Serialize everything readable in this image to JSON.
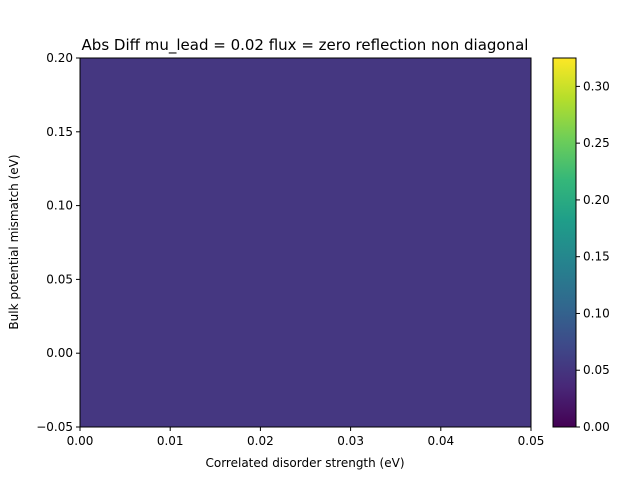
{
  "chart_data": {
    "type": "heatmap",
    "title": "Abs Diff mu_lead = 0.02 flux = zero reflection non diagonal",
    "xlabel": "Correlated disorder strength (eV)",
    "ylabel": "Bulk potential mismatch (eV)",
    "xlim": [
      0.0,
      0.05
    ],
    "ylim": [
      -0.05,
      0.2
    ],
    "x_ticks": [
      "0.00",
      "0.01",
      "0.02",
      "0.03",
      "0.04",
      "0.05"
    ],
    "y_ticks": [
      "−0.05",
      "0.00",
      "0.05",
      "0.10",
      "0.15",
      "0.20"
    ],
    "grid": false,
    "colormap": "viridis",
    "colorbar": {
      "range": [
        0.0,
        0.325
      ],
      "ticks": [
        "0.00",
        "0.05",
        "0.10",
        "0.15",
        "0.20",
        "0.25",
        "0.30"
      ]
    },
    "values": [
      [
        0.05
      ]
    ],
    "fill_color": "#453781"
  }
}
